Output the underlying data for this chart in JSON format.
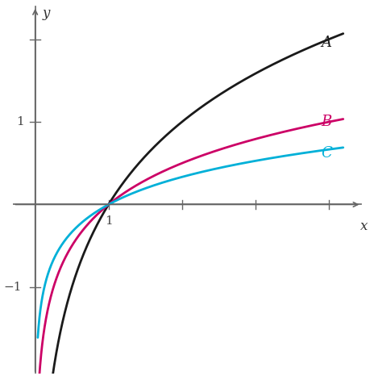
{
  "curves": [
    {
      "label": "A",
      "base": 2,
      "color": "#1a1a1a",
      "lw": 2.0
    },
    {
      "label": "B",
      "base": 4,
      "color": "#cc0066",
      "lw": 2.0
    },
    {
      "label": "C",
      "base": 8,
      "color": "#00b0d8",
      "lw": 2.0
    }
  ],
  "xmin": 0.035,
  "xmax": 4.2,
  "ymin": -2.0,
  "ymax": 2.3,
  "xlim_left": -0.3,
  "xlim_right": 4.5,
  "ylim_bottom": -2.05,
  "ylim_top": 2.45,
  "x_tick_positions": [
    1,
    2,
    3,
    4
  ],
  "y_tick_positions": [
    -1,
    1,
    2
  ],
  "label_positions": {
    "A": [
      3.9,
      1.96
    ],
    "B": [
      3.9,
      1.0
    ],
    "C": [
      3.9,
      0.625
    ]
  },
  "axis_label_x": "x",
  "axis_label_y": "y",
  "background_color": "#ffffff",
  "axis_color": "#666666",
  "tick_color": "#666666",
  "label_fontsize": 13,
  "axis_label_fontsize": 12,
  "tick_label_fontsize": 11
}
